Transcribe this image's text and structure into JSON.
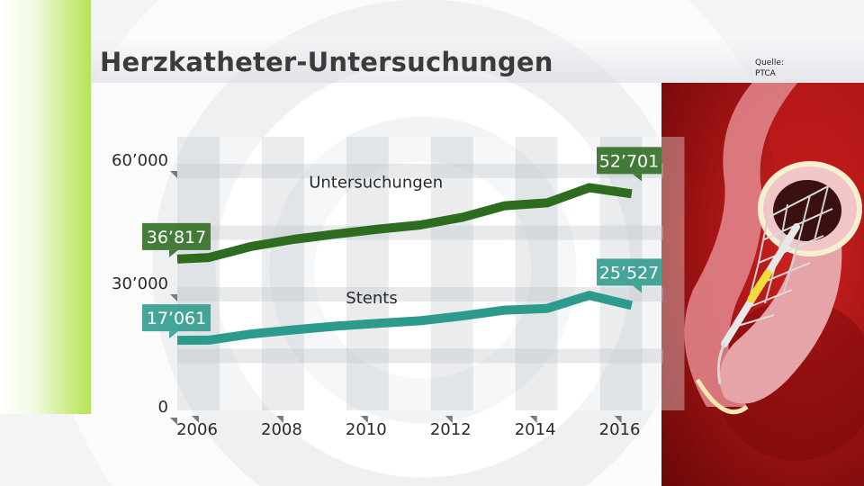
{
  "title": "Herzkatheter-Untersuchungen",
  "source": {
    "label": "Quelle:",
    "value": "PTCA"
  },
  "colors": {
    "untersuchungen": "#2d6b1f",
    "stents": "#2c9a8c",
    "accent_bar": "#b6e35c"
  },
  "chart_data": {
    "type": "line",
    "title": "Herzkatheter-Untersuchungen",
    "xlabel": "",
    "ylabel": "",
    "x": [
      2006,
      2007,
      2008,
      2009,
      2010,
      2011,
      2012,
      2013,
      2014,
      2015,
      2016,
      2017
    ],
    "xlim": [
      2006,
      2017.5
    ],
    "xticks": [
      "2006",
      "2008",
      "2010",
      "2012",
      "2014",
      "2016"
    ],
    "ylim": [
      0,
      60000
    ],
    "yticks": [
      {
        "value": 0,
        "label": "0"
      },
      {
        "value": 30000,
        "label": "30’000"
      },
      {
        "value": 60000,
        "label": "60’000"
      }
    ],
    "series": [
      {
        "name": "Untersuchungen",
        "values": [
          36817,
          37200,
          39900,
          41600,
          42900,
          44100,
          45100,
          47000,
          49800,
          50500,
          54200,
          52701
        ]
      },
      {
        "name": "Stents",
        "values": [
          17061,
          17100,
          18600,
          19600,
          20500,
          21200,
          21800,
          23000,
          24400,
          24800,
          28000,
          25527
        ]
      }
    ],
    "value_labels": [
      {
        "series": 0,
        "x": 2006,
        "text": "36’817"
      },
      {
        "series": 0,
        "x": 2017,
        "text": "52’701"
      },
      {
        "series": 1,
        "x": 2006,
        "text": "17’061"
      },
      {
        "series": 1,
        "x": 2017,
        "text": "25’527"
      }
    ],
    "grid": true,
    "legend": "inline"
  }
}
